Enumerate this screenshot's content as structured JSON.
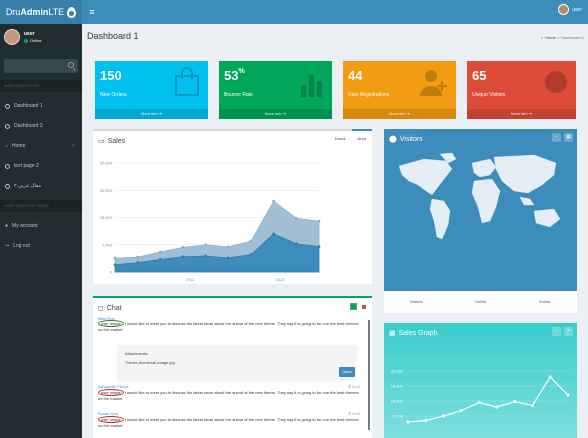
{
  "header": {
    "logo_pre": "Dru",
    "logo_bold": "Admin",
    "logo_post": "LTE",
    "toggle": "≡",
    "user": "user"
  },
  "sidebar": {
    "user_name": "user",
    "status": "Online",
    "main_nav_label": "MAIN NAVIGATION",
    "items": [
      {
        "label": "Dashboard 1"
      },
      {
        "label": "Dashboard 2"
      },
      {
        "label": "Home"
      },
      {
        "label": "test page 2"
      },
      {
        "label": "مقال عربي ۲"
      }
    ],
    "account_label": "USER ACCOUNT MENU",
    "account_items": [
      {
        "label": "My account"
      },
      {
        "label": "Log out"
      }
    ]
  },
  "page": {
    "title": "Dashboard 1",
    "breadcrumb_home": "Home",
    "breadcrumb_sep": "›",
    "breadcrumb_current": "Dashboard 1"
  },
  "small_boxes": [
    {
      "value": "150",
      "sup": "",
      "label": "New Orders",
      "more": "More info ➔",
      "color": "#00c0ef"
    },
    {
      "value": "53",
      "sup": "%",
      "label": "Bounce Rate",
      "more": "More info ➔",
      "color": "#00a65a"
    },
    {
      "value": "44",
      "sup": "",
      "label": "User Registrations",
      "more": "More info ➔",
      "color": "#f39c12"
    },
    {
      "value": "65",
      "sup": "",
      "label": "Unique Visitors",
      "more": "More info ➔",
      "color": "#dd4b39"
    }
  ],
  "sales": {
    "title": "Sales",
    "tabs": [
      "Donut",
      "Area"
    ],
    "chart_data": {
      "type": "area",
      "yticks": [
        "0",
        "7,500",
        "15,000",
        "22,500",
        "30,000"
      ],
      "xticks": [
        "2012",
        "2013"
      ],
      "ylim": [
        0,
        30000
      ],
      "series": [
        {
          "values": [
            3800,
            4100,
            5500,
            6800,
            7500,
            6900,
            8500,
            19500,
            14800,
            14000
          ]
        },
        {
          "values": [
            2000,
            2600,
            3500,
            4200,
            4400,
            3900,
            4800,
            10500,
            7800,
            7000
          ]
        }
      ]
    }
  },
  "visitors": {
    "title": "Visitors",
    "stats": [
      "Visitors",
      "Online",
      "Exists"
    ]
  },
  "chat": {
    "title": "Chat",
    "user_image": "user image",
    "messages": [
      {
        "name": "Mike Doe",
        "time": "",
        "text": "I would like to meet you to discuss the latest news about the arrival of the new theme. They say it is going to be one the best themes on the market"
      },
      {
        "name": "Alexander Pierce",
        "time": "⏱ 5:15",
        "text": "I would like to meet you to discuss the latest news about the arrival of the new theme. They say it is going to be one the best themes on the market"
      },
      {
        "name": "Susan Doe",
        "time": "⏱ 5:30",
        "text": "I would like to meet you to discuss the latest news about the arrival of the new theme. They say it is going to be one the best themes on the market"
      }
    ],
    "attachments_label": "Attachments:",
    "attachment_file": "Theme-thumbnail-image.jpg",
    "open_label": "Open"
  },
  "sales_graph": {
    "title": "Sales Graph",
    "yticks": [
      "20,000",
      "15,000",
      "10,000",
      "5,000"
    ],
    "values": [
      3000,
      3500,
      5000,
      6800,
      9500,
      8000,
      9800,
      8500,
      18000,
      12000
    ]
  }
}
